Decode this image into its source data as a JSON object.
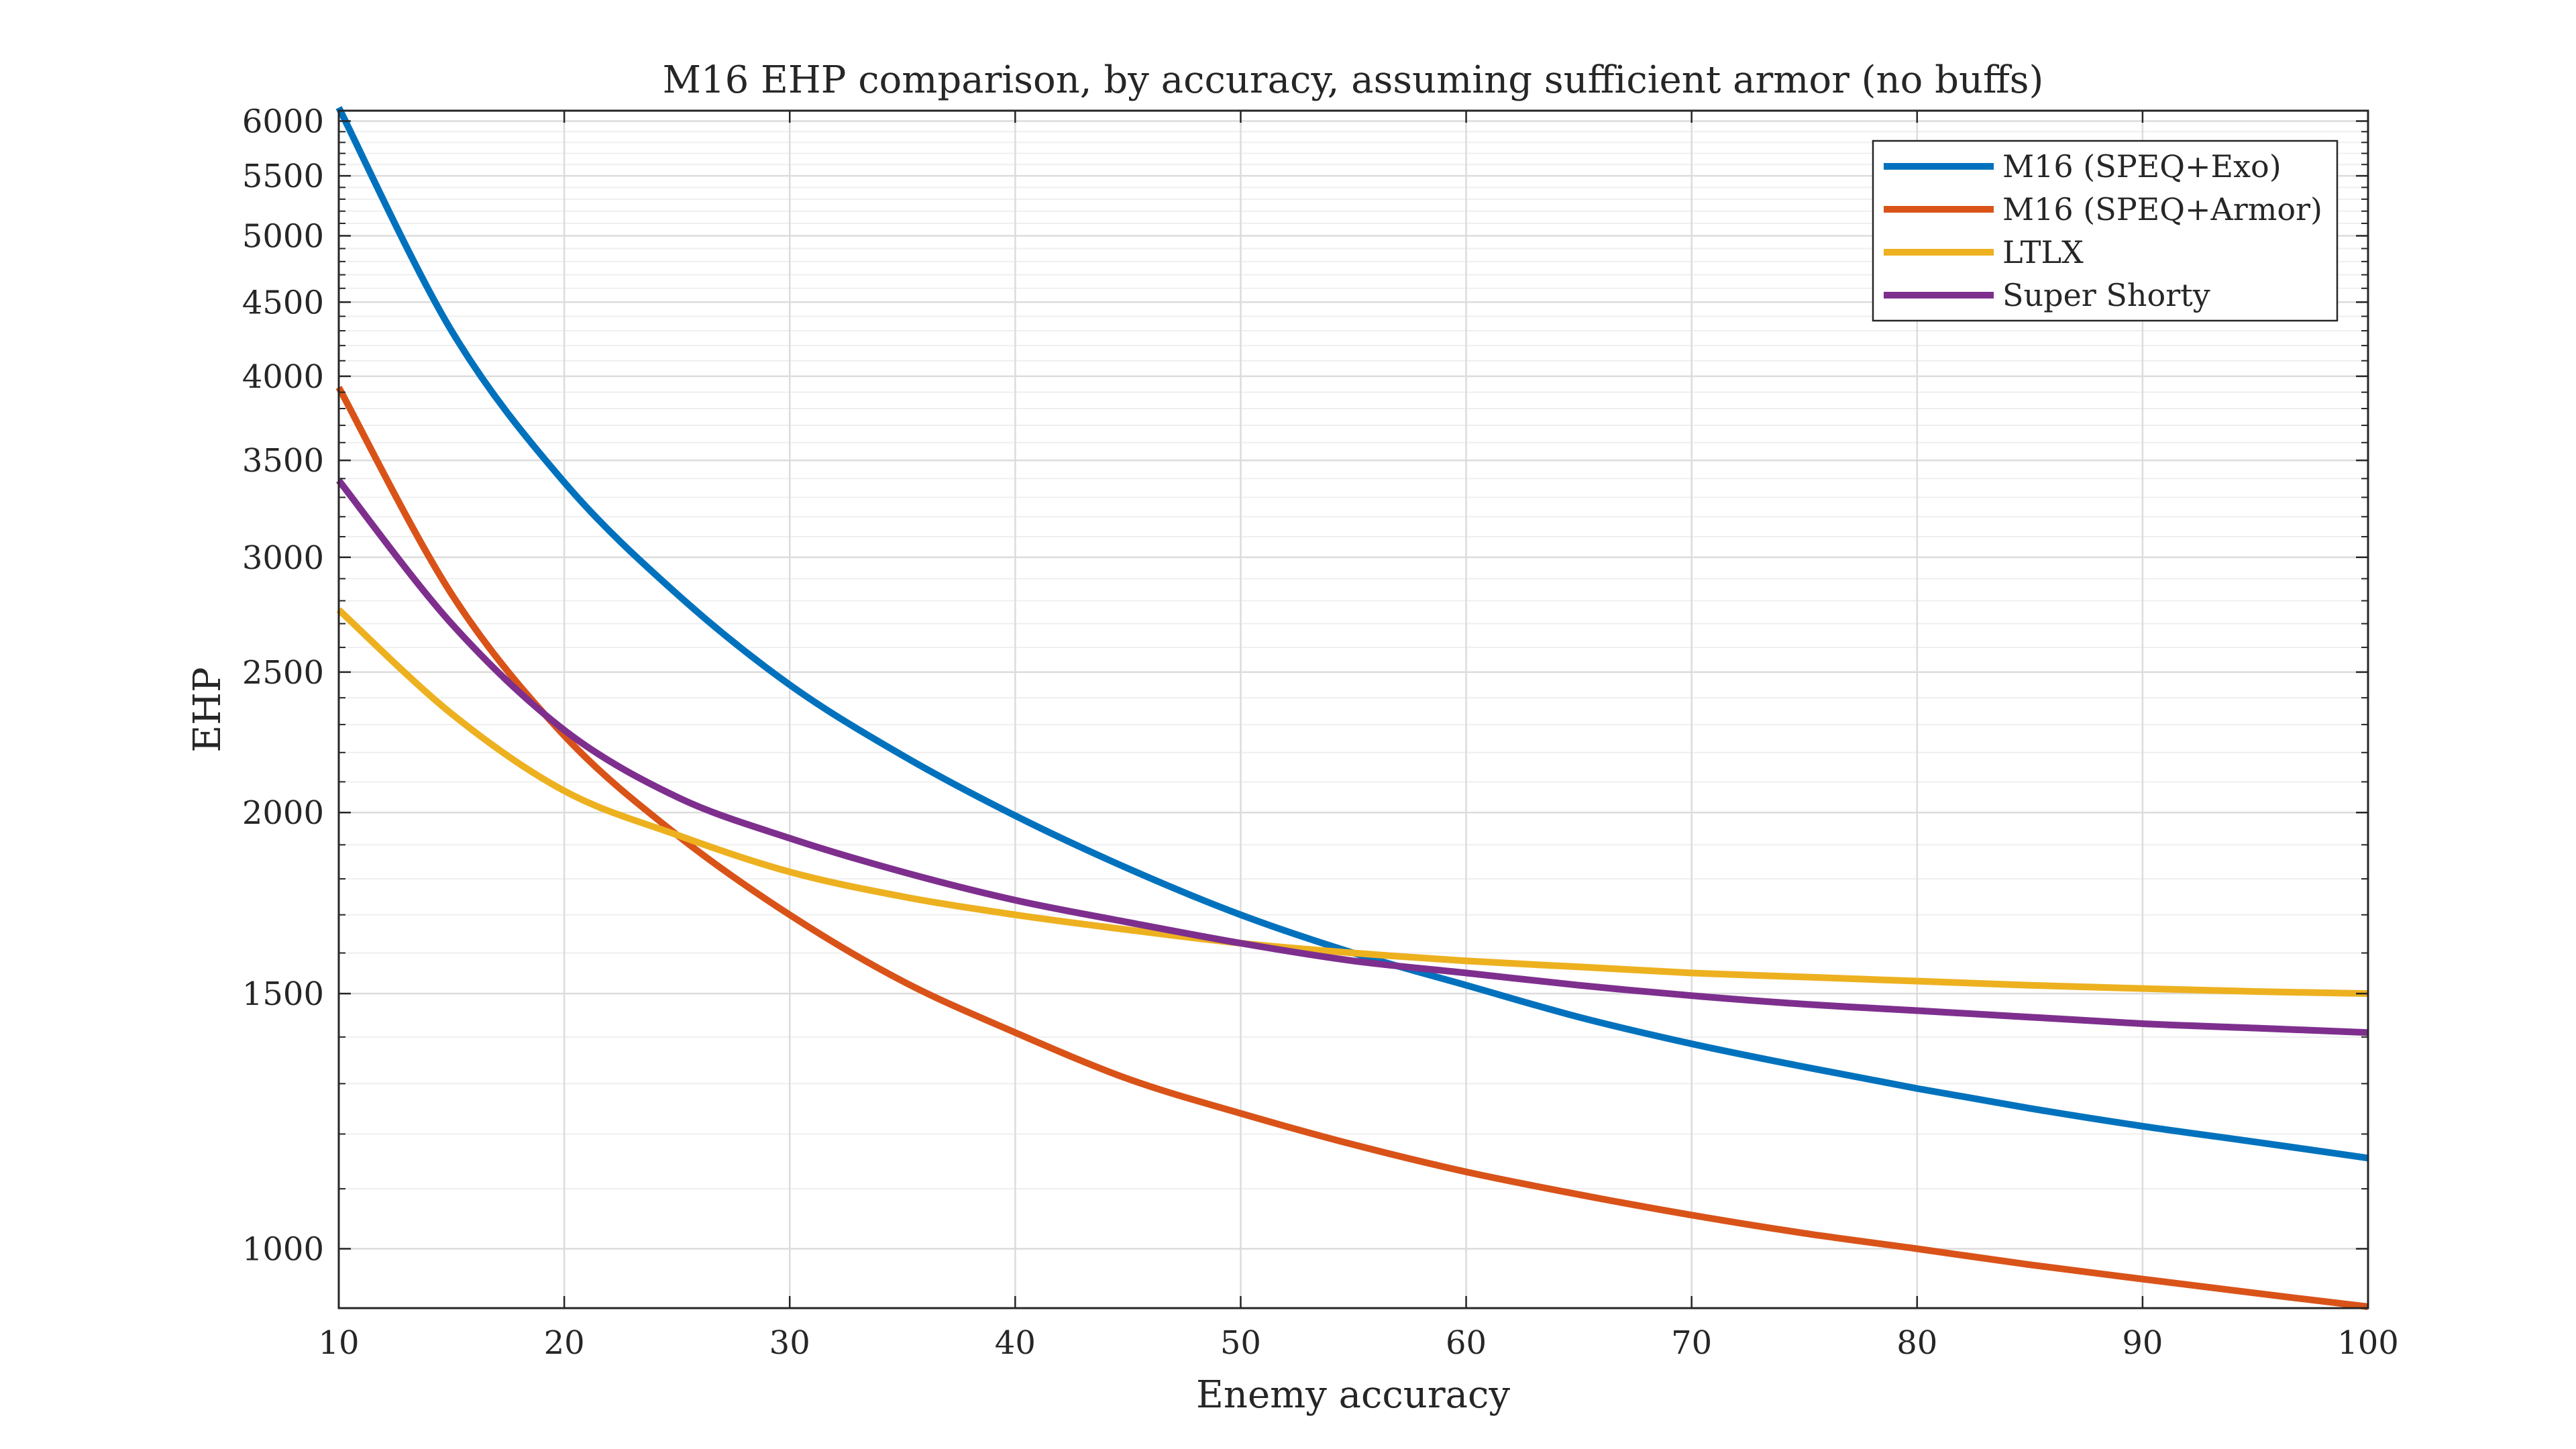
{
  "chart_data": {
    "type": "line",
    "title": "M16 EHP comparison, by accuracy, assuming sufficient armor (no buffs)",
    "xlabel": "Enemy accuracy",
    "ylabel": "EHP",
    "xlim": [
      10,
      100
    ],
    "ylim": [
      910,
      6100
    ],
    "yscale": "log",
    "grid": true,
    "minor_grid": true,
    "legend_position": "top-right",
    "x_ticks": [
      10,
      20,
      30,
      40,
      50,
      60,
      70,
      80,
      90,
      100
    ],
    "y_ticks": [
      1000,
      1500,
      2000,
      2500,
      3000,
      3500,
      4000,
      4500,
      5000,
      5500,
      6000
    ],
    "series": [
      {
        "name": "M16 (SPEQ+Exo)",
        "color": "#0072BD",
        "x": [
          10,
          15,
          20,
          25,
          30,
          35,
          40,
          45,
          50,
          55,
          60,
          65,
          70,
          75,
          80,
          85,
          90,
          95,
          100
        ],
        "y": [
          6130,
          4300,
          3380,
          2830,
          2450,
          2190,
          1990,
          1830,
          1700,
          1600,
          1520,
          1445,
          1385,
          1335,
          1290,
          1250,
          1215,
          1185,
          1155
        ]
      },
      {
        "name": "M16 (SPEQ+Armor)",
        "color": "#D95319",
        "x": [
          10,
          15,
          20,
          25,
          30,
          35,
          40,
          45,
          50,
          55,
          60,
          65,
          70,
          75,
          80,
          85,
          90,
          95,
          100
        ],
        "y": [
          3930,
          2830,
          2260,
          1930,
          1700,
          1530,
          1410,
          1310,
          1240,
          1180,
          1130,
          1090,
          1055,
          1025,
          1000,
          975,
          953,
          932,
          912
        ]
      },
      {
        "name": "LTLX",
        "color": "#EDB120",
        "x": [
          10,
          15,
          20,
          25,
          30,
          35,
          40,
          45,
          50,
          55,
          60,
          65,
          70,
          75,
          80,
          85,
          90,
          95,
          100
        ],
        "y": [
          2760,
          2340,
          2070,
          1930,
          1820,
          1750,
          1700,
          1660,
          1625,
          1600,
          1580,
          1565,
          1550,
          1540,
          1530,
          1520,
          1512,
          1505,
          1500
        ]
      },
      {
        "name": "Super Shorty",
        "color": "#7E2F8E",
        "x": [
          10,
          15,
          20,
          25,
          30,
          35,
          40,
          45,
          50,
          55,
          60,
          65,
          70,
          75,
          80,
          85,
          90,
          95,
          100
        ],
        "y": [
          3390,
          2700,
          2280,
          2050,
          1920,
          1820,
          1740,
          1680,
          1625,
          1580,
          1550,
          1520,
          1495,
          1475,
          1460,
          1445,
          1430,
          1420,
          1410
        ]
      }
    ]
  }
}
